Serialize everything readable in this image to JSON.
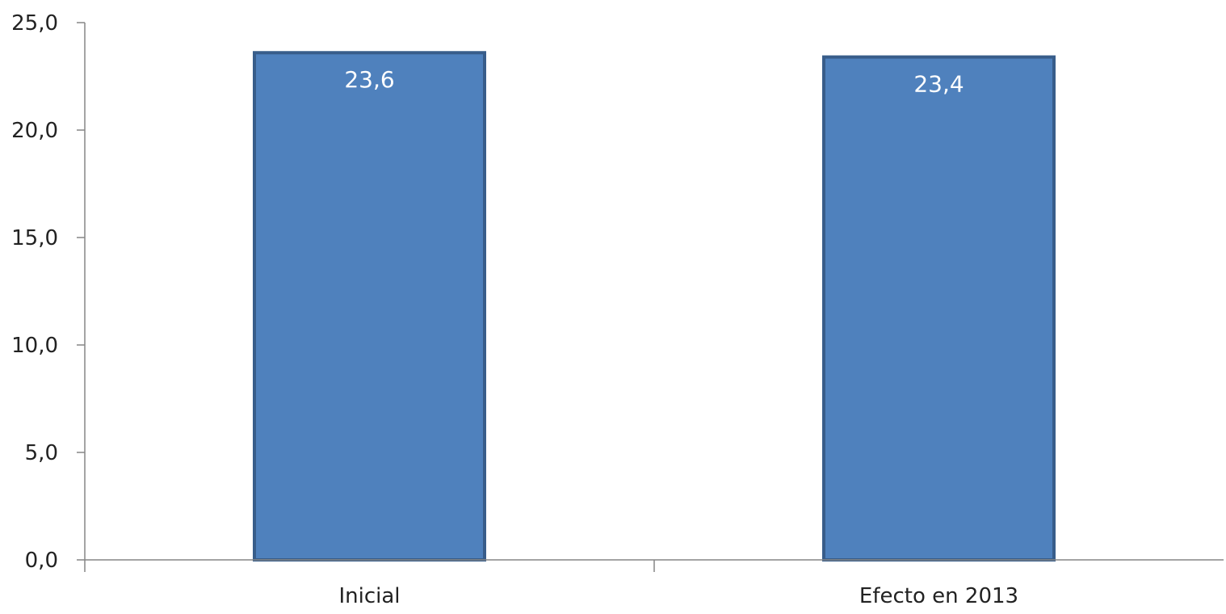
{
  "chart_data": {
    "type": "bar",
    "title": "",
    "xlabel": "",
    "ylabel": "",
    "categories": [
      "Inicial",
      "Efecto en 2013"
    ],
    "values": [
      23.6,
      23.4
    ],
    "value_labels": [
      "23,6",
      "23,4"
    ],
    "ylim": [
      0,
      25
    ],
    "y_ticks": [
      0,
      5,
      10,
      15,
      20,
      25
    ],
    "y_tick_labels": [
      "0,0",
      "5,0",
      "10,0",
      "15,0",
      "20,0",
      "25,0"
    ],
    "grid": false,
    "legend": "none",
    "colors": {
      "bar_fill": "#4f81bd",
      "bar_stroke": "#385d8a",
      "axis": "#868686",
      "data_label": "#ffffff"
    }
  }
}
